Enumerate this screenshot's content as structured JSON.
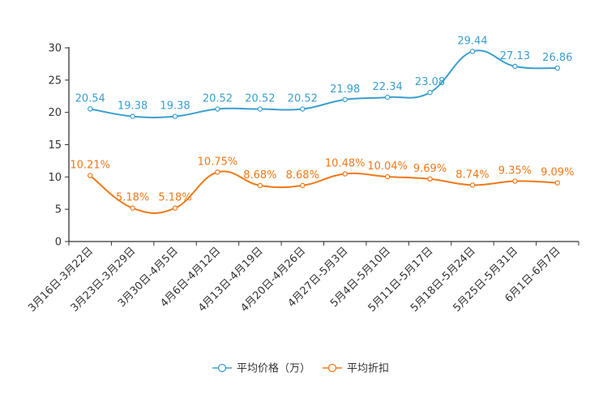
{
  "chart_data": {
    "type": "line",
    "categories": [
      "3月16日-3月22日",
      "3月23日-3月29日",
      "3月30日-4月5日",
      "4月6日-4月12日",
      "4月13日-4月19日",
      "4月20日-4月26日",
      "4月27日-5月3日",
      "5月4日-5月10日",
      "5月11日-5月17日",
      "5月18日-5月24日",
      "5月25日-5月31日",
      "6月1日-6月7日"
    ],
    "ylim": [
      0,
      30
    ],
    "yticks": [
      0,
      5,
      10,
      15,
      20,
      25,
      30
    ],
    "series": [
      {
        "name": "平均价格（万）",
        "color": "#3a9fd0",
        "values": [
          20.54,
          19.38,
          19.38,
          20.52,
          20.52,
          20.52,
          21.98,
          22.34,
          23.08,
          29.44,
          27.13,
          26.86
        ],
        "labels": [
          "20.54",
          "19.38",
          "19.38",
          "20.52",
          "20.52",
          "20.52",
          "21.98",
          "22.34",
          "23.08",
          "29.44",
          "27.13",
          "26.86"
        ]
      },
      {
        "name": "平均折扣",
        "color": "#f07818",
        "values": [
          10.21,
          5.18,
          5.18,
          10.75,
          8.68,
          8.68,
          10.48,
          10.04,
          9.69,
          8.74,
          9.35,
          9.09
        ],
        "labels": [
          "10.21%",
          "5.18%",
          "5.18%",
          "10.75%",
          "8.68%",
          "8.68%",
          "10.48%",
          "10.04%",
          "9.69%",
          "8.74%",
          "9.35%",
          "9.09%"
        ]
      }
    ]
  }
}
